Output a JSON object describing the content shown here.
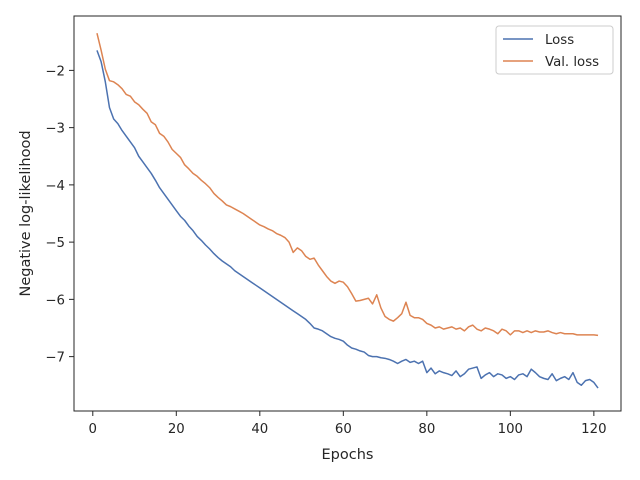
{
  "chart_data": {
    "type": "line",
    "xlabel": "Epochs",
    "ylabel": "Negative log-likelihood",
    "xlim": [
      -4.5,
      126.5
    ],
    "ylim": [
      -7.95,
      -1.05
    ],
    "xticks": [
      0,
      20,
      40,
      60,
      80,
      100,
      120
    ],
    "yticks": [
      -2,
      -3,
      -4,
      -5,
      -6,
      -7
    ],
    "xtick_labels": [
      "0",
      "20",
      "40",
      "60",
      "80",
      "100",
      "120"
    ],
    "ytick_labels": [
      "−2",
      "−3",
      "−4",
      "−5",
      "−6",
      "−7"
    ],
    "grid": false,
    "legend_position": "top-right",
    "series": [
      {
        "name": "Loss",
        "color": "#4c72b0",
        "x": [
          1,
          2,
          3,
          4,
          5,
          6,
          7,
          8,
          9,
          10,
          11,
          12,
          13,
          14,
          15,
          16,
          17,
          18,
          19,
          20,
          21,
          22,
          23,
          24,
          25,
          26,
          27,
          28,
          29,
          30,
          31,
          32,
          33,
          34,
          35,
          36,
          37,
          38,
          39,
          40,
          41,
          42,
          43,
          44,
          45,
          46,
          47,
          48,
          49,
          50,
          51,
          52,
          53,
          54,
          55,
          56,
          57,
          58,
          59,
          60,
          61,
          62,
          63,
          64,
          65,
          66,
          67,
          68,
          69,
          70,
          71,
          72,
          73,
          74,
          75,
          76,
          77,
          78,
          79,
          80,
          81,
          82,
          83,
          84,
          85,
          86,
          87,
          88,
          89,
          90,
          91,
          92,
          93,
          94,
          95,
          96,
          97,
          98,
          99,
          100,
          101,
          102,
          103,
          104,
          105,
          106,
          107,
          108,
          109,
          110,
          111,
          112,
          113,
          114,
          115,
          116,
          117,
          118,
          119,
          120,
          121
        ],
        "values": [
          -1.65,
          -1.85,
          -2.2,
          -2.65,
          -2.85,
          -2.93,
          -3.05,
          -3.15,
          -3.25,
          -3.35,
          -3.5,
          -3.6,
          -3.7,
          -3.8,
          -3.92,
          -4.05,
          -4.15,
          -4.25,
          -4.35,
          -4.45,
          -4.55,
          -4.62,
          -4.72,
          -4.8,
          -4.9,
          -4.97,
          -5.05,
          -5.12,
          -5.2,
          -5.27,
          -5.33,
          -5.38,
          -5.43,
          -5.5,
          -5.55,
          -5.6,
          -5.65,
          -5.7,
          -5.75,
          -5.8,
          -5.85,
          -5.9,
          -5.95,
          -6.0,
          -6.05,
          -6.1,
          -6.15,
          -6.2,
          -6.25,
          -6.3,
          -6.35,
          -6.42,
          -6.5,
          -6.52,
          -6.55,
          -6.6,
          -6.65,
          -6.68,
          -6.7,
          -6.73,
          -6.8,
          -6.85,
          -6.87,
          -6.9,
          -6.92,
          -6.98,
          -7.0,
          -7.0,
          -7.02,
          -7.03,
          -7.05,
          -7.08,
          -7.12,
          -7.08,
          -7.05,
          -7.1,
          -7.08,
          -7.12,
          -7.08,
          -7.28,
          -7.2,
          -7.3,
          -7.25,
          -7.28,
          -7.3,
          -7.33,
          -7.25,
          -7.35,
          -7.3,
          -7.22,
          -7.2,
          -7.18,
          -7.38,
          -7.32,
          -7.28,
          -7.35,
          -7.3,
          -7.32,
          -7.38,
          -7.35,
          -7.4,
          -7.32,
          -7.3,
          -7.35,
          -7.22,
          -7.28,
          -7.35,
          -7.38,
          -7.4,
          -7.3,
          -7.42,
          -7.38,
          -7.35,
          -7.4,
          -7.28,
          -7.45,
          -7.5,
          -7.42,
          -7.4,
          -7.45,
          -7.55
        ]
      },
      {
        "name": "Val. loss",
        "color": "#dd8452",
        "x": [
          1,
          2,
          3,
          4,
          5,
          6,
          7,
          8,
          9,
          10,
          11,
          12,
          13,
          14,
          15,
          16,
          17,
          18,
          19,
          20,
          21,
          22,
          23,
          24,
          25,
          26,
          27,
          28,
          29,
          30,
          31,
          32,
          33,
          34,
          35,
          36,
          37,
          38,
          39,
          40,
          41,
          42,
          43,
          44,
          45,
          46,
          47,
          48,
          49,
          50,
          51,
          52,
          53,
          54,
          55,
          56,
          57,
          58,
          59,
          60,
          61,
          62,
          63,
          64,
          65,
          66,
          67,
          68,
          69,
          70,
          71,
          72,
          73,
          74,
          75,
          76,
          77,
          78,
          79,
          80,
          81,
          82,
          83,
          84,
          85,
          86,
          87,
          88,
          89,
          90,
          91,
          92,
          93,
          94,
          95,
          96,
          97,
          98,
          99,
          100,
          101,
          102,
          103,
          104,
          105,
          106,
          107,
          108,
          109,
          110,
          111,
          112,
          113,
          114,
          115,
          116,
          117,
          118,
          119,
          120,
          121
        ],
        "values": [
          -1.35,
          -1.65,
          -1.98,
          -2.18,
          -2.2,
          -2.25,
          -2.32,
          -2.42,
          -2.45,
          -2.55,
          -2.6,
          -2.68,
          -2.75,
          -2.9,
          -2.95,
          -3.1,
          -3.15,
          -3.25,
          -3.38,
          -3.45,
          -3.52,
          -3.65,
          -3.72,
          -3.8,
          -3.85,
          -3.92,
          -3.98,
          -4.05,
          -4.15,
          -4.22,
          -4.28,
          -4.35,
          -4.38,
          -4.42,
          -4.46,
          -4.5,
          -4.55,
          -4.6,
          -4.65,
          -4.7,
          -4.73,
          -4.77,
          -4.8,
          -4.85,
          -4.88,
          -4.92,
          -5.0,
          -5.18,
          -5.1,
          -5.15,
          -5.25,
          -5.3,
          -5.28,
          -5.4,
          -5.5,
          -5.6,
          -5.68,
          -5.72,
          -5.68,
          -5.7,
          -5.78,
          -5.9,
          -6.03,
          -6.02,
          -6.0,
          -5.98,
          -6.08,
          -5.92,
          -6.15,
          -6.3,
          -6.35,
          -6.38,
          -6.32,
          -6.25,
          -6.05,
          -6.28,
          -6.32,
          -6.32,
          -6.35,
          -6.42,
          -6.45,
          -6.5,
          -6.48,
          -6.52,
          -6.5,
          -6.48,
          -6.52,
          -6.5,
          -6.55,
          -6.48,
          -6.45,
          -6.52,
          -6.55,
          -6.5,
          -6.52,
          -6.55,
          -6.6,
          -6.52,
          -6.55,
          -6.62,
          -6.55,
          -6.55,
          -6.58,
          -6.55,
          -6.58,
          -6.55,
          -6.57,
          -6.57,
          -6.55,
          -6.58,
          -6.6,
          -6.58,
          -6.6,
          -6.6,
          -6.6,
          -6.62,
          -6.62,
          -6.62,
          -6.62,
          -6.62,
          -6.63
        ]
      }
    ]
  }
}
